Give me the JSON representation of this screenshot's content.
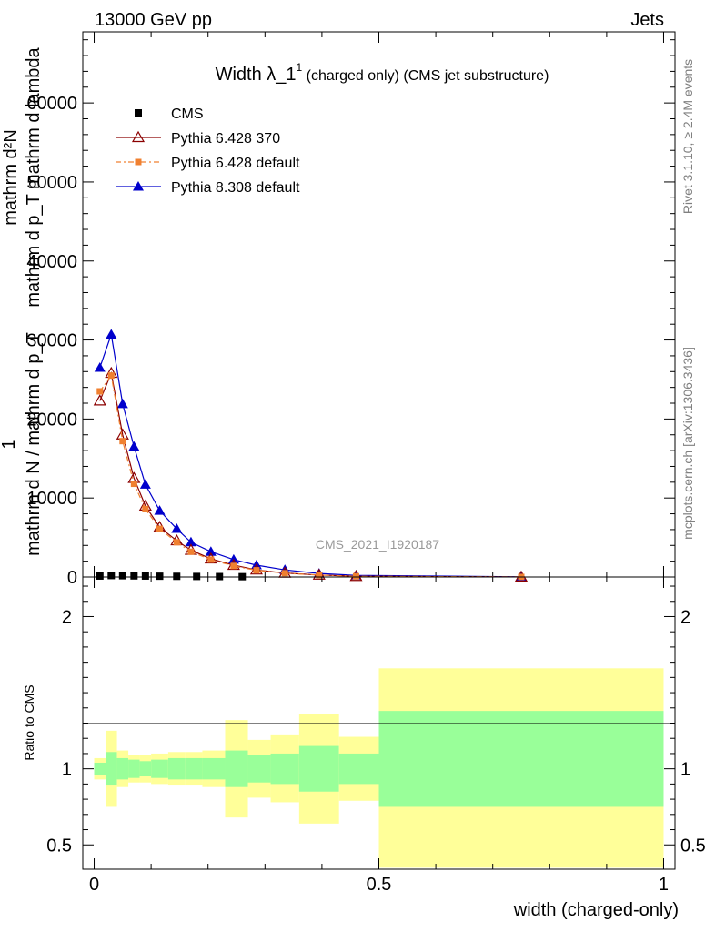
{
  "header": {
    "left": "13000 GeV pp",
    "right": "Jets"
  },
  "side_labels": {
    "rivet": "Rivet 3.1.10, ≥ 2.4M events",
    "mcplots": "mcplots.cern.ch [arXiv:1306.3436]"
  },
  "watermark": "CMS_2021_I1920187",
  "colors": {
    "cms": "#000000",
    "py6_370": "#8b0000",
    "py6_default": "#f08030",
    "py8_default": "#0000cc",
    "band_inner": "#99ff99",
    "band_outer": "#ffff99"
  },
  "chart_data": [
    {
      "type": "line",
      "title_main": "Width λ_1",
      "title_sup": "1",
      "title_rest": " (charged only) (CMS jet substructure)",
      "ylabel_num": "mathrm d²N",
      "ylabel_den": "mathrm d p_T mathrm d lambda",
      "ylabel_one": "1",
      "ylabel_frac": "mathrm d N / mathrm d p_T",
      "xlim": [
        -0.02,
        1.02
      ],
      "ylim": [
        0,
        69000
      ],
      "y_ticks": [
        0,
        10000,
        20000,
        30000,
        40000,
        50000,
        60000
      ],
      "y_tick_labels": [
        "0",
        "10000",
        "20000",
        "30000",
        "40000",
        "50000",
        "60000"
      ],
      "legend_position": "top-left",
      "series": [
        {
          "name": "CMS",
          "marker": "square",
          "x": [
            0.01,
            0.03,
            0.05,
            0.07,
            0.09,
            0.115,
            0.145,
            0.18,
            0.22,
            0.26
          ],
          "y": [
            120,
            180,
            160,
            140,
            120,
            100,
            85,
            70,
            55,
            40
          ]
        },
        {
          "name": "Pythia 6.428 370",
          "marker": "open-triangle",
          "x": [
            0.01,
            0.03,
            0.05,
            0.07,
            0.09,
            0.115,
            0.145,
            0.17,
            0.205,
            0.245,
            0.285,
            0.335,
            0.395,
            0.46,
            0.75
          ],
          "y": [
            22300,
            25800,
            18000,
            12500,
            9000,
            6300,
            4600,
            3400,
            2300,
            1500,
            900,
            500,
            250,
            90,
            10
          ]
        },
        {
          "name": "Pythia 6.428 default",
          "marker": "filled-square",
          "x": [
            0.01,
            0.03,
            0.05,
            0.07,
            0.09,
            0.115,
            0.145,
            0.17,
            0.205,
            0.245,
            0.285,
            0.335,
            0.395,
            0.46,
            0.75
          ],
          "y": [
            23500,
            25500,
            17200,
            11800,
            8600,
            6100,
            4400,
            3200,
            2200,
            1400,
            850,
            480,
            240,
            85,
            10
          ]
        },
        {
          "name": "Pythia 8.308 default",
          "marker": "filled-triangle",
          "x": [
            0.01,
            0.03,
            0.05,
            0.07,
            0.09,
            0.115,
            0.145,
            0.17,
            0.205,
            0.245,
            0.285,
            0.335,
            0.395,
            0.46,
            0.75
          ],
          "y": [
            26500,
            30700,
            21900,
            16500,
            11700,
            8400,
            6100,
            4400,
            3200,
            2200,
            1500,
            900,
            450,
            200,
            20
          ]
        }
      ]
    },
    {
      "type": "area",
      "ylabel": "Ratio to CMS",
      "xlabel": "width (charged-only)",
      "xlim": [
        -0.02,
        1.02
      ],
      "ylim": [
        0.34,
        2.26
      ],
      "x_ticks": [
        0,
        0.5,
        1
      ],
      "x_tick_labels": [
        "0",
        "0.5",
        "1"
      ],
      "y_ticks": [
        0.5,
        1,
        2
      ],
      "y_tick_labels": [
        "0.5",
        "1",
        "2"
      ],
      "reference_line": 1,
      "bin_edges": [
        0,
        0.02,
        0.04,
        0.06,
        0.08,
        0.1,
        0.13,
        0.16,
        0.19,
        0.23,
        0.27,
        0.31,
        0.36,
        0.43,
        0.5,
        1.0
      ],
      "inner_band_low": [
        0.96,
        0.89,
        0.93,
        0.94,
        0.95,
        0.94,
        0.93,
        0.93,
        0.93,
        0.88,
        0.91,
        0.9,
        0.85,
        0.9,
        0.75
      ],
      "inner_band_high": [
        1.04,
        1.11,
        1.07,
        1.06,
        1.05,
        1.06,
        1.07,
        1.07,
        1.07,
        1.12,
        1.09,
        1.1,
        1.15,
        1.1,
        1.38
      ],
      "outer_band_low": [
        0.93,
        0.75,
        0.88,
        0.91,
        0.91,
        0.9,
        0.89,
        0.89,
        0.88,
        0.68,
        0.81,
        0.78,
        0.64,
        0.79,
        0.35
      ],
      "outer_band_high": [
        1.07,
        1.25,
        1.12,
        1.09,
        1.09,
        1.1,
        1.11,
        1.11,
        1.12,
        1.32,
        1.19,
        1.22,
        1.36,
        1.21,
        1.66
      ]
    }
  ]
}
